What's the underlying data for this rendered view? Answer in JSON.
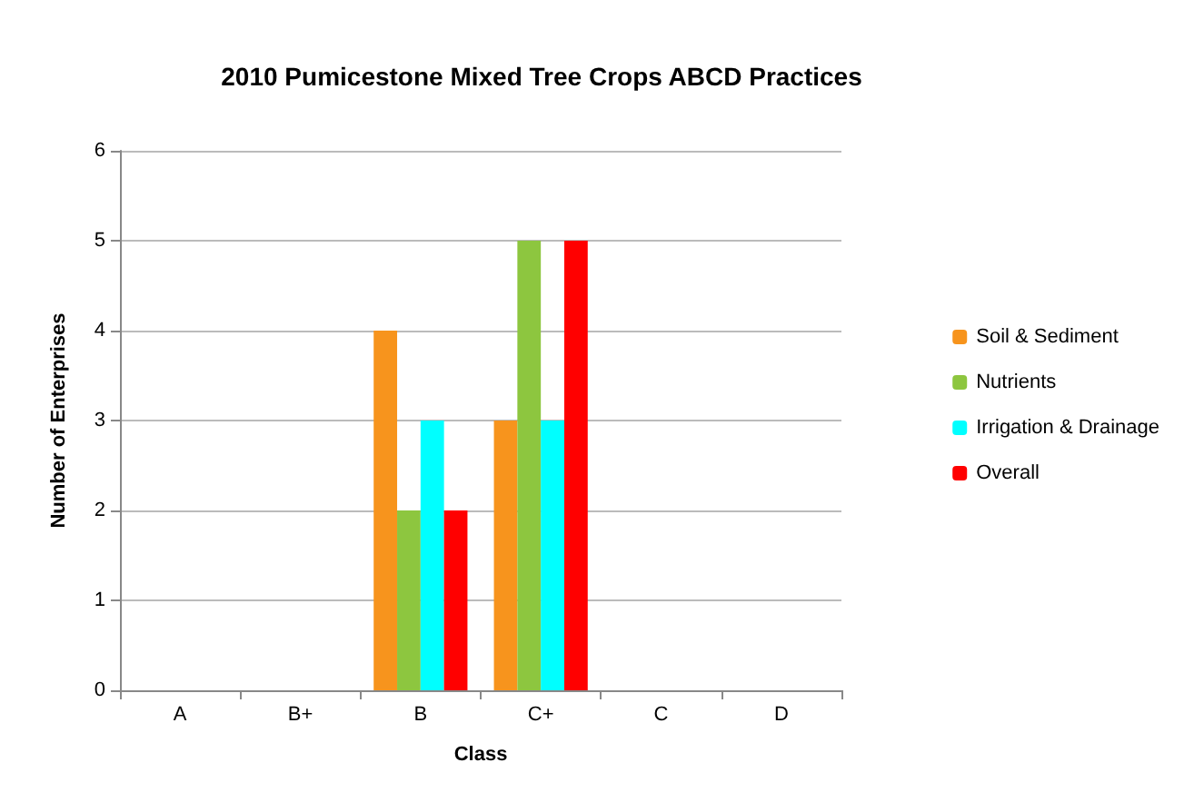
{
  "chart_data": {
    "type": "bar",
    "title": "2010 Pumicestone Mixed Tree Crops ABCD Practices",
    "xlabel": "Class",
    "ylabel": "Number of Enterprises",
    "categories": [
      "A",
      "B+",
      "B",
      "C+",
      "C",
      "D"
    ],
    "series": [
      {
        "name": "Soil & Sediment",
        "color": "#f7941d",
        "values": [
          0,
          0,
          4,
          3,
          0,
          0
        ]
      },
      {
        "name": "Nutrients",
        "color": "#8dc63f",
        "values": [
          0,
          0,
          2,
          5,
          0,
          0
        ]
      },
      {
        "name": "Irrigation & Drainage",
        "color": "#00ffff",
        "values": [
          0,
          0,
          3,
          3,
          0,
          0
        ]
      },
      {
        "name": "Overall",
        "color": "#ff0000",
        "values": [
          0,
          0,
          2,
          5,
          0,
          0
        ]
      }
    ],
    "ylim": [
      0,
      6
    ],
    "yticks": [
      0,
      1,
      2,
      3,
      4,
      5,
      6
    ],
    "grid": "y",
    "legend": "right"
  }
}
